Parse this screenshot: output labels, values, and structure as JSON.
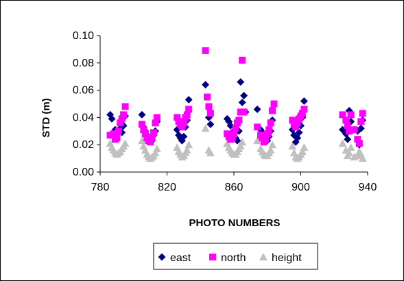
{
  "chart_data": {
    "type": "scatter",
    "title": "",
    "xlabel": "PHOTO NUMBERS",
    "ylabel": "STD (m)",
    "xlim": [
      780,
      940
    ],
    "ylim": [
      0.0,
      0.1
    ],
    "x_ticks": [
      "780",
      "820",
      "860",
      "900",
      "940"
    ],
    "y_ticks": [
      "0.00",
      "0.02",
      "0.04",
      "0.06",
      "0.08",
      "0.10"
    ],
    "x_tick_values": [
      780,
      820,
      860,
      900,
      940
    ],
    "y_tick_values": [
      0.0,
      0.02,
      0.04,
      0.06,
      0.08,
      0.1
    ],
    "grid": false,
    "legend_position": "bottom",
    "series": [
      {
        "name": "east",
        "marker": "diamond",
        "color": "#000080",
        "points": [
          [
            786,
            0.042
          ],
          [
            787,
            0.039
          ],
          [
            789,
            0.031
          ],
          [
            790,
            0.028
          ],
          [
            791,
            0.03
          ],
          [
            792,
            0.032
          ],
          [
            793,
            0.029
          ],
          [
            794,
            0.034
          ],
          [
            795,
            0.041
          ],
          [
            805,
            0.042
          ],
          [
            806,
            0.033
          ],
          [
            807,
            0.03
          ],
          [
            808,
            0.027
          ],
          [
            809,
            0.025
          ],
          [
            810,
            0.024
          ],
          [
            811,
            0.023
          ],
          [
            812,
            0.027
          ],
          [
            813,
            0.03
          ],
          [
            814,
            0.037
          ],
          [
            826,
            0.031
          ],
          [
            827,
            0.027
          ],
          [
            828,
            0.025
          ],
          [
            829,
            0.023
          ],
          [
            830,
            0.026
          ],
          [
            831,
            0.033
          ],
          [
            832,
            0.038
          ],
          [
            833,
            0.053
          ],
          [
            843,
            0.064
          ],
          [
            845,
            0.04
          ],
          [
            846,
            0.035
          ],
          [
            856,
            0.039
          ],
          [
            857,
            0.037
          ],
          [
            858,
            0.034
          ],
          [
            859,
            0.029
          ],
          [
            860,
            0.027
          ],
          [
            861,
            0.025
          ],
          [
            862,
            0.023
          ],
          [
            863,
            0.03
          ],
          [
            864,
            0.066
          ],
          [
            865,
            0.051
          ],
          [
            866,
            0.056
          ],
          [
            867,
            0.044
          ],
          [
            874,
            0.046
          ],
          [
            876,
            0.031
          ],
          [
            877,
            0.029
          ],
          [
            878,
            0.027
          ],
          [
            879,
            0.025
          ],
          [
            880,
            0.023
          ],
          [
            881,
            0.026
          ],
          [
            882,
            0.03
          ],
          [
            883,
            0.038
          ],
          [
            895,
            0.031
          ],
          [
            896,
            0.027
          ],
          [
            897,
            0.022
          ],
          [
            898,
            0.025
          ],
          [
            899,
            0.029
          ],
          [
            900,
            0.034
          ],
          [
            901,
            0.04
          ],
          [
            902,
            0.052
          ],
          [
            925,
            0.031
          ],
          [
            927,
            0.028
          ],
          [
            928,
            0.024
          ],
          [
            929,
            0.045
          ],
          [
            930,
            0.037
          ],
          [
            932,
            0.031
          ],
          [
            934,
            0.03
          ],
          [
            935,
            0.02
          ],
          [
            936,
            0.032
          ],
          [
            937,
            0.038
          ]
        ]
      },
      {
        "name": "north",
        "marker": "square",
        "color": "#ff00ff",
        "points": [
          [
            786,
            0.027
          ],
          [
            788,
            0.028
          ],
          [
            789,
            0.024
          ],
          [
            790,
            0.025
          ],
          [
            791,
            0.03
          ],
          [
            792,
            0.036
          ],
          [
            793,
            0.039
          ],
          [
            794,
            0.042
          ],
          [
            795,
            0.048
          ],
          [
            805,
            0.035
          ],
          [
            806,
            0.031
          ],
          [
            807,
            0.028
          ],
          [
            808,
            0.025
          ],
          [
            809,
            0.023
          ],
          [
            810,
            0.022
          ],
          [
            811,
            0.025
          ],
          [
            812,
            0.029
          ],
          [
            813,
            0.036
          ],
          [
            814,
            0.04
          ],
          [
            826,
            0.04
          ],
          [
            827,
            0.037
          ],
          [
            828,
            0.035
          ],
          [
            829,
            0.033
          ],
          [
            830,
            0.036
          ],
          [
            831,
            0.04
          ],
          [
            832,
            0.042
          ],
          [
            833,
            0.046
          ],
          [
            843,
            0.089
          ],
          [
            844,
            0.055
          ],
          [
            845,
            0.048
          ],
          [
            846,
            0.043
          ],
          [
            856,
            0.028
          ],
          [
            857,
            0.026
          ],
          [
            858,
            0.024
          ],
          [
            859,
            0.025
          ],
          [
            860,
            0.028
          ],
          [
            861,
            0.032
          ],
          [
            862,
            0.036
          ],
          [
            863,
            0.038
          ],
          [
            864,
            0.044
          ],
          [
            865,
            0.082
          ],
          [
            866,
            0.044
          ],
          [
            874,
            0.033
          ],
          [
            876,
            0.027
          ],
          [
            877,
            0.025
          ],
          [
            878,
            0.022
          ],
          [
            879,
            0.024
          ],
          [
            880,
            0.028
          ],
          [
            881,
            0.031
          ],
          [
            882,
            0.036
          ],
          [
            883,
            0.045
          ],
          [
            884,
            0.05
          ],
          [
            895,
            0.038
          ],
          [
            896,
            0.035
          ],
          [
            897,
            0.033
          ],
          [
            898,
            0.036
          ],
          [
            899,
            0.039
          ],
          [
            900,
            0.041
          ],
          [
            901,
            0.043
          ],
          [
            902,
            0.046
          ],
          [
            925,
            0.042
          ],
          [
            927,
            0.038
          ],
          [
            928,
            0.034
          ],
          [
            929,
            0.03
          ],
          [
            930,
            0.042
          ],
          [
            932,
            0.031
          ],
          [
            934,
            0.024
          ],
          [
            935,
            0.021
          ],
          [
            936,
            0.037
          ],
          [
            937,
            0.043
          ]
        ]
      },
      {
        "name": "height",
        "marker": "triangle",
        "color": "#c0c0c0",
        "points": [
          [
            786,
            0.021
          ],
          [
            787,
            0.018
          ],
          [
            788,
            0.016
          ],
          [
            789,
            0.014
          ],
          [
            790,
            0.013
          ],
          [
            791,
            0.014
          ],
          [
            792,
            0.015
          ],
          [
            793,
            0.017
          ],
          [
            794,
            0.019
          ],
          [
            795,
            0.021
          ],
          [
            805,
            0.023
          ],
          [
            806,
            0.019
          ],
          [
            807,
            0.016
          ],
          [
            808,
            0.013
          ],
          [
            809,
            0.011
          ],
          [
            810,
            0.01
          ],
          [
            811,
            0.011
          ],
          [
            812,
            0.012
          ],
          [
            813,
            0.014
          ],
          [
            814,
            0.017
          ],
          [
            826,
            0.018
          ],
          [
            827,
            0.015
          ],
          [
            828,
            0.013
          ],
          [
            829,
            0.011
          ],
          [
            830,
            0.012
          ],
          [
            831,
            0.014
          ],
          [
            832,
            0.016
          ],
          [
            833,
            0.02
          ],
          [
            843,
            0.032
          ],
          [
            845,
            0.016
          ],
          [
            846,
            0.014
          ],
          [
            856,
            0.021
          ],
          [
            857,
            0.018
          ],
          [
            858,
            0.016
          ],
          [
            859,
            0.014
          ],
          [
            860,
            0.013
          ],
          [
            861,
            0.013
          ],
          [
            862,
            0.015
          ],
          [
            863,
            0.017
          ],
          [
            864,
            0.019
          ],
          [
            865,
            0.022
          ],
          [
            874,
            0.023
          ],
          [
            876,
            0.017
          ],
          [
            877,
            0.015
          ],
          [
            878,
            0.013
          ],
          [
            879,
            0.012
          ],
          [
            880,
            0.012
          ],
          [
            881,
            0.014
          ],
          [
            882,
            0.016
          ],
          [
            883,
            0.02
          ],
          [
            895,
            0.019
          ],
          [
            896,
            0.014
          ],
          [
            897,
            0.011
          ],
          [
            898,
            0.01
          ],
          [
            899,
            0.011
          ],
          [
            900,
            0.013
          ],
          [
            901,
            0.015
          ],
          [
            902,
            0.018
          ],
          [
            925,
            0.021
          ],
          [
            927,
            0.016
          ],
          [
            928,
            0.012
          ],
          [
            929,
            0.014
          ],
          [
            930,
            0.018
          ],
          [
            932,
            0.011
          ],
          [
            934,
            0.012
          ],
          [
            935,
            0.015
          ],
          [
            936,
            0.013
          ],
          [
            937,
            0.01
          ]
        ]
      }
    ]
  }
}
